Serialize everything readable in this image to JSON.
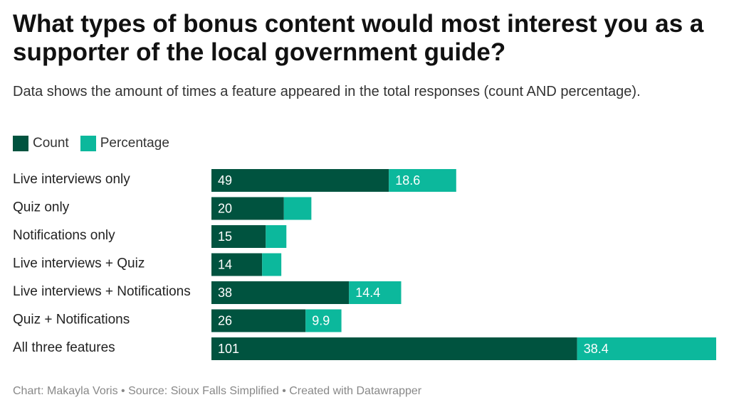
{
  "header": {
    "title": "What types of bonus content would most interest you as a supporter of the local government guide?",
    "subtitle": "Data shows the amount of times a feature appeared in the total responses (count AND percentage)."
  },
  "colors": {
    "count": "#00533f",
    "percentage": "#0cb89c",
    "label_on_dark": "#ffffff"
  },
  "chart_data": {
    "type": "bar",
    "orientation": "horizontal",
    "stacked": true,
    "categories": [
      "Live interviews only",
      "Quiz only",
      "Notifications only",
      "Live interviews + Quiz",
      "Live interviews + Notifications",
      "Quiz + Notifications",
      "All three features"
    ],
    "series": [
      {
        "name": "Count",
        "values": [
          49,
          20,
          15,
          14,
          38,
          26,
          101
        ]
      },
      {
        "name": "Percentage",
        "values": [
          18.6,
          7.6,
          5.7,
          5.3,
          14.4,
          9.9,
          38.4
        ]
      }
    ],
    "value_labels": {
      "Count": [
        "49",
        "20",
        "15",
        "14",
        "38",
        "26",
        "101"
      ],
      "Percentage": [
        "18.6",
        "",
        "",
        "",
        "14.4",
        "9.9",
        "38.4"
      ]
    },
    "legend": {
      "position": "top-left",
      "entries": [
        "Count",
        "Percentage"
      ]
    },
    "xlim": [
      0,
      139.4
    ],
    "grid": false,
    "title": "",
    "xlabel": "",
    "ylabel": ""
  },
  "footer": {
    "credit": "Chart: Makayla Voris • Source: Sioux Falls Simplified • Created with Datawrapper"
  }
}
